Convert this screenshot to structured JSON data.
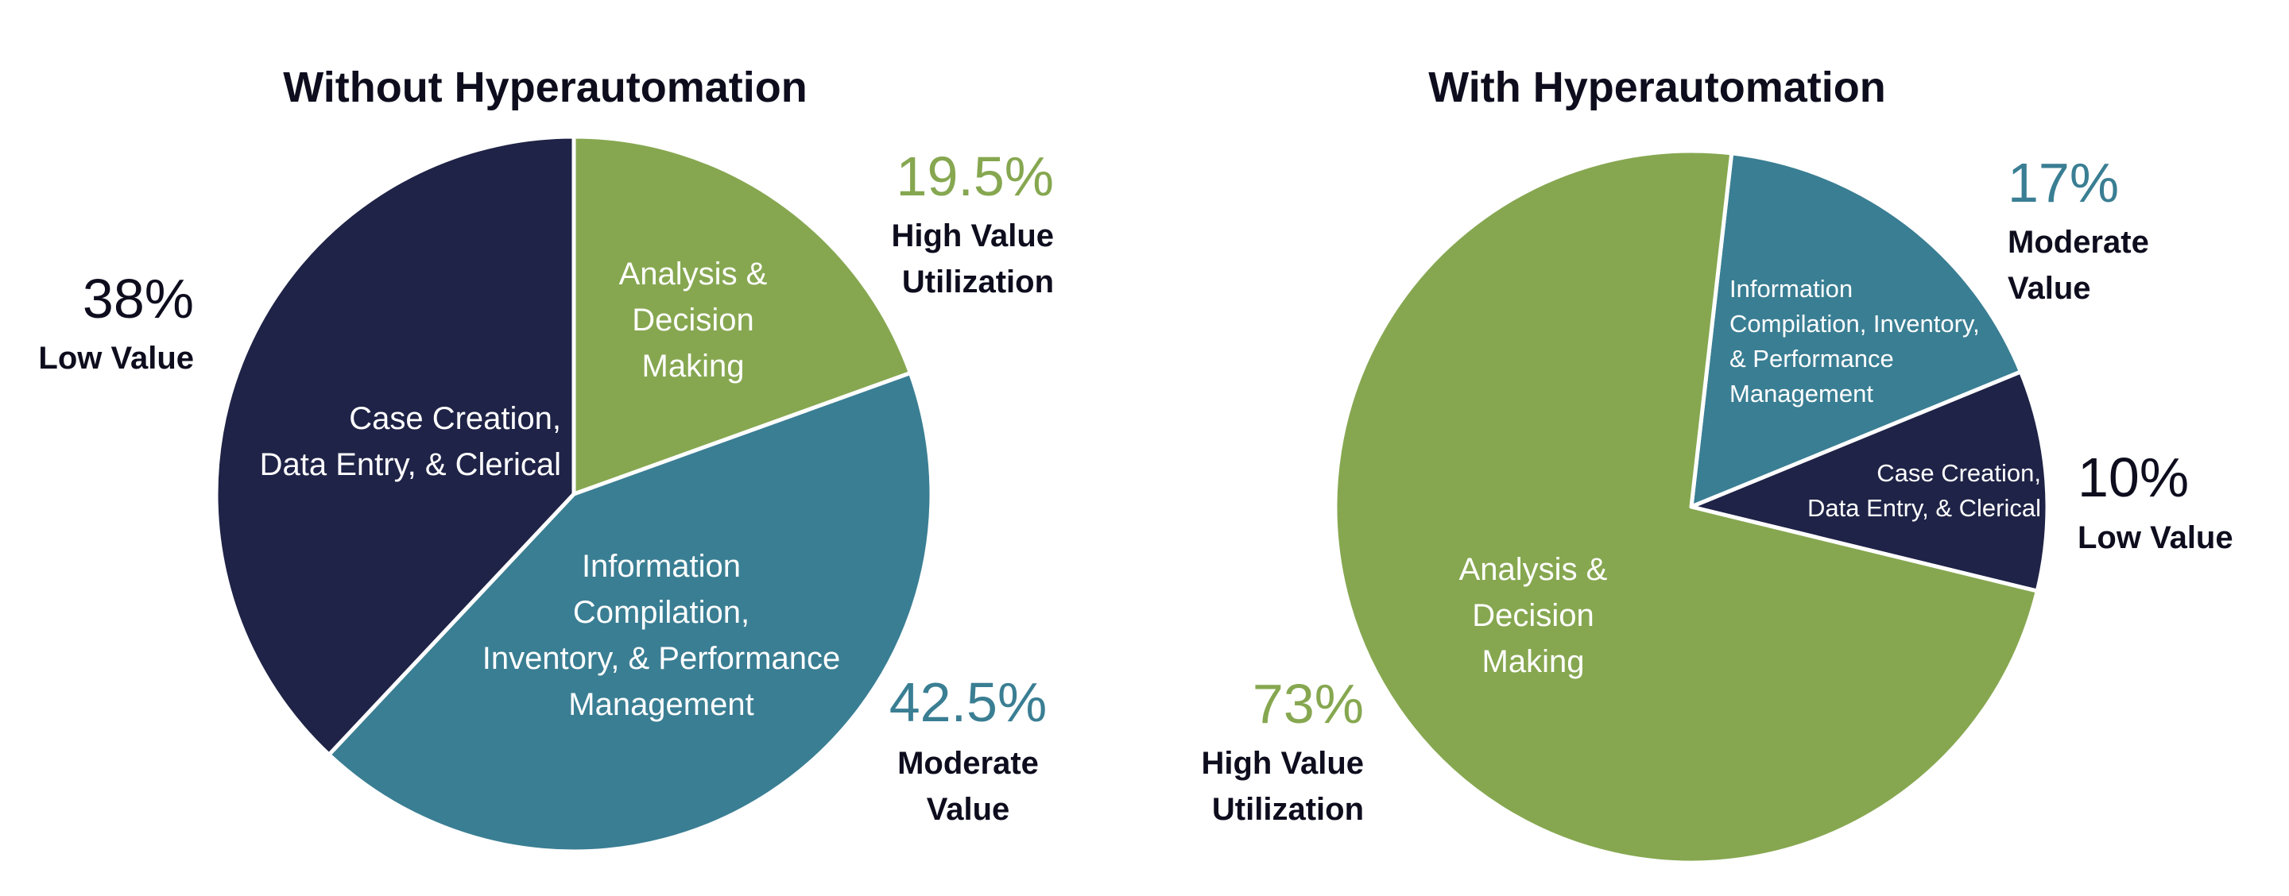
{
  "colors": {
    "low": "#1f2347",
    "high": "#86a750",
    "moderate": "#3a7e93",
    "text": "#0d0d1e",
    "divider": "#ffffff"
  },
  "chart_data": [
    {
      "type": "pie",
      "title": "Without Hyperautomation",
      "slices": [
        {
          "key": "high",
          "label": [
            "Analysis &",
            "Decision",
            "Making"
          ],
          "value": 19.5,
          "pct_label": "19.5%",
          "category": [
            "High Value",
            "Utilization"
          ]
        },
        {
          "key": "moderate",
          "label": [
            "Information",
            "Compilation,",
            "Inventory, & Performance",
            "Management"
          ],
          "value": 42.5,
          "pct_label": "42.5%",
          "category": [
            "Moderate",
            "Value"
          ]
        },
        {
          "key": "low",
          "label": [
            "Case Creation,",
            "Data Entry, & Clerical"
          ],
          "value": 38,
          "pct_label": "38%",
          "category": [
            "Low Value"
          ]
        }
      ]
    },
    {
      "type": "pie",
      "title": "With Hyperautomation",
      "slices": [
        {
          "key": "moderate",
          "label": [
            "Information",
            "Compilation, Inventory,",
            "& Performance",
            "Management"
          ],
          "value": 17,
          "pct_label": "17%",
          "category": [
            "Moderate",
            "Value"
          ]
        },
        {
          "key": "low",
          "label": [
            "Case  Creation,",
            "Data Entry, & Clerical"
          ],
          "value": 10,
          "pct_label": "10%",
          "category": [
            "Low Value"
          ]
        },
        {
          "key": "high",
          "label": [
            "Analysis &",
            "Decision",
            "Making"
          ],
          "value": 73,
          "pct_label": "73%",
          "category": [
            "High Value",
            "Utilization"
          ]
        }
      ]
    }
  ]
}
